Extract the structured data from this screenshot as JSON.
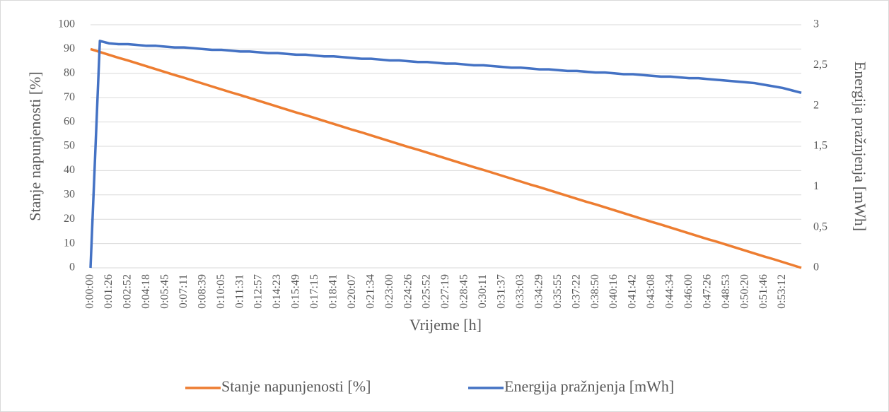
{
  "chart_data": {
    "type": "line",
    "x_label": "Vrijeme [h]",
    "y_label": "Stanje napunjenosti [%]",
    "y2_label": "Energija pražnjenja [mWh]",
    "categories": [
      "0:00:00",
      null,
      "0:01:26",
      null,
      "0:02:52",
      null,
      "0:04:18",
      null,
      "0:05:45",
      null,
      "0:07:11",
      null,
      "0:08:39",
      null,
      "0:10:05",
      null,
      "0:11:31",
      null,
      "0:12:57",
      null,
      "0:14:23",
      null,
      "0:15:49",
      null,
      "0:17:15",
      null,
      "0:18:41",
      null,
      "0:20:07",
      null,
      "0:21:34",
      null,
      "0:23:00",
      null,
      "0:24:26",
      null,
      "0:25:52",
      null,
      "0:27:19",
      null,
      "0:28:45",
      null,
      "0:30:11",
      null,
      "0:31:37",
      null,
      "0:33:03",
      null,
      "0:34:29",
      null,
      "0:35:55",
      null,
      "0:37:22",
      null,
      "0:38:50",
      null,
      "0:40:16",
      null,
      "0:41:42",
      null,
      "0:43:08",
      null,
      "0:44:34",
      null,
      "0:46:00",
      null,
      "0:47:26",
      null,
      "0:48:53",
      null,
      "0:50:20",
      null,
      "0:51:46",
      null,
      "0:53:12",
      null,
      null
    ],
    "series": [
      {
        "name": "Stanje napunjenosti [%]",
        "color": "#ed7d31",
        "values": [
          90,
          88.8,
          87.6,
          86.4,
          85.3,
          84.1,
          82.9,
          81.7,
          80.5,
          79.3,
          78.2,
          77.0,
          75.8,
          74.6,
          73.4,
          72.2,
          71.1,
          69.9,
          68.7,
          67.5,
          66.3,
          65.1,
          63.9,
          62.8,
          61.6,
          60.4,
          59.2,
          58.0,
          56.8,
          55.7,
          54.5,
          53.3,
          52.1,
          50.9,
          49.7,
          48.6,
          47.4,
          46.2,
          45.0,
          43.8,
          42.6,
          41.4,
          40.3,
          39.1,
          37.9,
          36.7,
          35.5,
          34.3,
          33.2,
          32.0,
          30.8,
          29.6,
          28.4,
          27.2,
          26.1,
          24.9,
          23.7,
          22.5,
          21.3,
          20.1,
          18.9,
          17.8,
          16.6,
          15.4,
          14.2,
          13.0,
          11.8,
          10.7,
          9.5,
          8.3,
          7.1,
          5.9,
          4.7,
          3.6,
          2.4,
          1.2,
          0
        ]
      },
      {
        "name": "Energija pražnjenja [mWh]",
        "color": "#4472c4",
        "axis": "y2",
        "values": [
          0,
          2.8,
          2.77,
          2.76,
          2.76,
          2.75,
          2.74,
          2.74,
          2.73,
          2.72,
          2.72,
          2.71,
          2.7,
          2.69,
          2.69,
          2.68,
          2.67,
          2.67,
          2.66,
          2.65,
          2.65,
          2.64,
          2.63,
          2.63,
          2.62,
          2.61,
          2.61,
          2.6,
          2.59,
          2.58,
          2.58,
          2.57,
          2.56,
          2.56,
          2.55,
          2.54,
          2.54,
          2.53,
          2.52,
          2.52,
          2.51,
          2.5,
          2.5,
          2.49,
          2.48,
          2.47,
          2.47,
          2.46,
          2.45,
          2.45,
          2.44,
          2.43,
          2.43,
          2.42,
          2.41,
          2.41,
          2.4,
          2.39,
          2.39,
          2.38,
          2.37,
          2.36,
          2.36,
          2.35,
          2.34,
          2.34,
          2.33,
          2.32,
          2.31,
          2.3,
          2.29,
          2.28,
          2.26,
          2.24,
          2.22,
          2.19,
          2.16
        ]
      }
    ],
    "ylim": [
      0,
      100
    ],
    "yticks": [
      0,
      10,
      20,
      30,
      40,
      50,
      60,
      70,
      80,
      90,
      100
    ],
    "y2lim": [
      0,
      3
    ],
    "y2ticks": [
      0,
      {
        "value": 0.5,
        "label": "0,5"
      },
      1,
      {
        "value": 1.5,
        "label": "1,5"
      },
      2,
      {
        "value": 2.5,
        "label": "2,5"
      },
      3
    ],
    "grid": true,
    "legend": "bottom"
  }
}
